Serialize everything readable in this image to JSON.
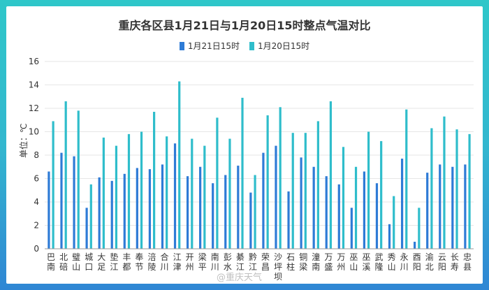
{
  "chart_data": {
    "type": "bar",
    "title": "重庆各区县1月21日与1月20日15时整点气温对比",
    "ylabel": "单位：℃",
    "xlabel": "",
    "ylim": [
      0,
      16
    ],
    "yticks": [
      0,
      2,
      4,
      6,
      8,
      10,
      12,
      14,
      16
    ],
    "grid": true,
    "legend_position": "top-center",
    "categories": [
      "巴南",
      "北碚",
      "璧山",
      "城口",
      "大足",
      "垫江",
      "丰都",
      "奉节",
      "涪陵",
      "合川",
      "江津",
      "开州",
      "梁平",
      "南川",
      "彭水",
      "綦江",
      "黔江",
      "荣昌",
      "沙坪坝",
      "石柱",
      "铜梁",
      "潼南",
      "万盛",
      "万州",
      "巫山",
      "巫溪",
      "武隆",
      "秀山",
      "永川",
      "酉阳",
      "渝北",
      "云阳",
      "长寿",
      "忠县"
    ],
    "series": [
      {
        "name": "1月21日15时",
        "color": "#2e7bd6",
        "values": [
          6.6,
          8.2,
          7.9,
          3.5,
          6.1,
          5.8,
          6.4,
          6.9,
          6.8,
          7.2,
          9.0,
          6.2,
          7.0,
          5.6,
          6.3,
          7.1,
          4.8,
          8.2,
          8.8,
          4.9,
          7.8,
          7.0,
          6.2,
          5.5,
          3.5,
          6.6,
          5.6,
          2.1,
          7.7,
          0.6,
          6.5,
          7.2,
          7.0,
          7.2
        ]
      },
      {
        "name": "1月20日15时",
        "color": "#2fbdcb",
        "values": [
          10.9,
          12.6,
          11.8,
          5.5,
          9.5,
          8.8,
          9.8,
          10.0,
          11.7,
          9.6,
          14.3,
          9.4,
          8.8,
          11.2,
          9.4,
          12.9,
          6.3,
          11.4,
          12.1,
          9.9,
          9.9,
          10.9,
          12.6,
          8.7,
          7.0,
          10.0,
          9.2,
          4.5,
          11.9,
          3.5,
          10.3,
          11.3,
          10.2,
          9.8
        ]
      }
    ]
  },
  "watermark": "@重庆天气"
}
